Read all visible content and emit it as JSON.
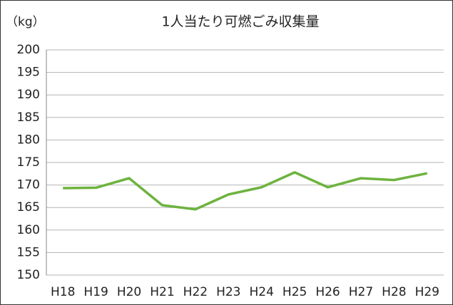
{
  "chart_data": {
    "type": "line",
    "title": "1人当たり可燃ごみ収集量",
    "y_label": "（kg）",
    "categories": [
      "H18",
      "H19",
      "H20",
      "H21",
      "H22",
      "H23",
      "H24",
      "H25",
      "H26",
      "H27",
      "H28",
      "H29"
    ],
    "series": [
      {
        "name": "可燃ごみ収集量",
        "color": "#6db33f",
        "values": [
          169.3,
          169.4,
          171.5,
          165.5,
          164.6,
          167.9,
          169.5,
          172.8,
          169.5,
          171.5,
          171.1,
          172.6
        ]
      }
    ],
    "ylim": [
      150,
      200
    ],
    "yticks": [
      150,
      155,
      160,
      165,
      170,
      175,
      180,
      185,
      190,
      195,
      200
    ],
    "grid": true
  }
}
